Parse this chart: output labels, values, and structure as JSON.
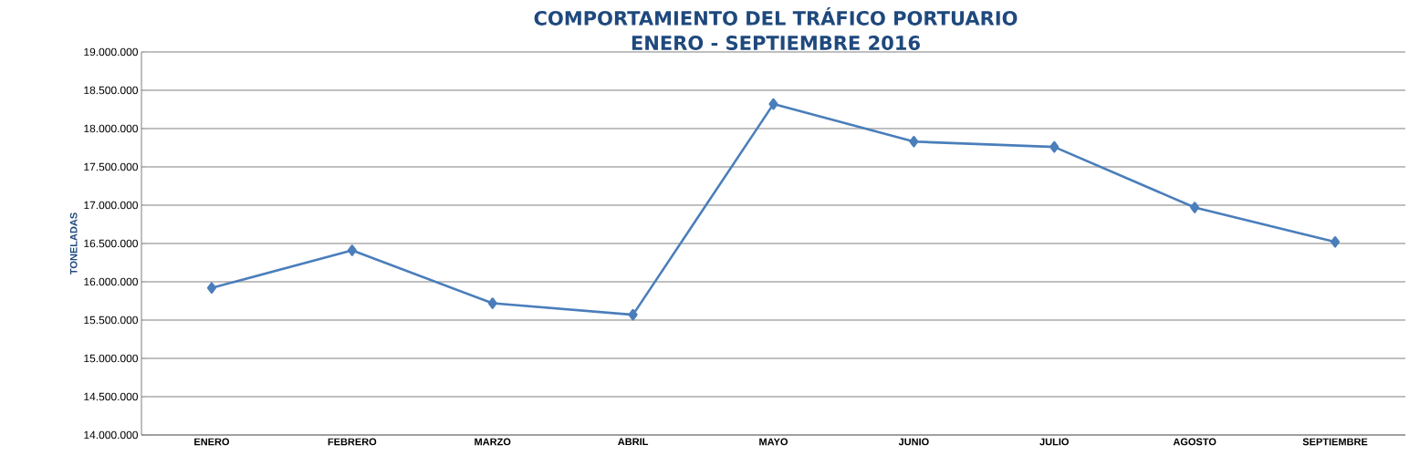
{
  "chart_data": {
    "type": "line",
    "title": "COMPORTAMIENTO DEL TRÁFICO PORTUARIO",
    "subtitle": "ENERO - SEPTIEMBRE 2016",
    "ylabel": "TONELADAS",
    "categories": [
      "ENERO",
      "FEBRERO",
      "MARZO",
      "ABRIL",
      "MAYO",
      "JUNIO",
      "JULIO",
      "AGOSTO",
      "SEPTIEMBRE"
    ],
    "series": [
      {
        "color": "#4a7ebb",
        "values": [
          15920000,
          16410000,
          15720000,
          15570000,
          18320000,
          17830000,
          17760000,
          16970000,
          16520000
        ]
      }
    ],
    "ylim": [
      14000000,
      19000000
    ],
    "yticks": [
      {
        "value": 14000000,
        "label": "14.000.000"
      },
      {
        "value": 14500000,
        "label": "14.500.000"
      },
      {
        "value": 15000000,
        "label": "15.000.000"
      },
      {
        "value": 15500000,
        "label": "15.500.000"
      },
      {
        "value": 16000000,
        "label": "16.000.000"
      },
      {
        "value": 16500000,
        "label": "16.500.000"
      },
      {
        "value": 17000000,
        "label": "17.000.000"
      },
      {
        "value": 17500000,
        "label": "17.500.000"
      },
      {
        "value": 18000000,
        "label": "18.000.000"
      },
      {
        "value": 18500000,
        "label": "18.500.000"
      },
      {
        "value": 19000000,
        "label": "19.000.000"
      }
    ],
    "grid": "y",
    "marker": "diamond",
    "line_style": "solid"
  }
}
